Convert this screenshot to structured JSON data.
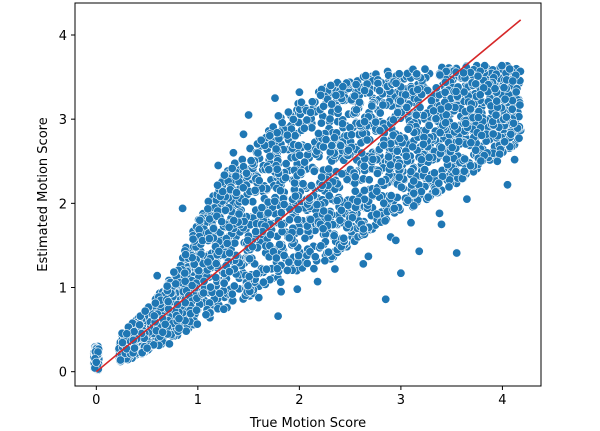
{
  "chart_data": {
    "type": "scatter",
    "title": "",
    "xlabel": "True Motion Score",
    "ylabel": "Estimated Motion Score",
    "xlim": [
      -0.21,
      4.38
    ],
    "ylim": [
      -0.17,
      4.38
    ],
    "xticks": [
      0,
      1,
      2,
      3,
      4
    ],
    "yticks": [
      0,
      1,
      2,
      3,
      4
    ],
    "grid": false,
    "legend": "none",
    "point_color": "#1f77b4",
    "point_edge_color": "#ffffff",
    "series": [
      {
        "type": "scatter",
        "values_note_only_points_visible_outside_dense_cloud_are_listed_individually": false,
        "band": [
          {
            "x": 0.0,
            "y_low": 0.02,
            "y_high": 0.3
          },
          {
            "x": 0.2,
            "y_low": 0.1,
            "y_high": 0.42
          },
          {
            "x": 0.4,
            "y_low": 0.18,
            "y_high": 0.62
          },
          {
            "x": 0.6,
            "y_low": 0.3,
            "y_high": 0.9
          },
          {
            "x": 0.8,
            "y_low": 0.42,
            "y_high": 1.25
          },
          {
            "x": 1.0,
            "y_low": 0.55,
            "y_high": 1.8
          },
          {
            "x": 1.2,
            "y_low": 0.7,
            "y_high": 2.25
          },
          {
            "x": 1.4,
            "y_low": 0.82,
            "y_high": 2.55
          },
          {
            "x": 1.6,
            "y_low": 0.95,
            "y_high": 2.8
          },
          {
            "x": 1.8,
            "y_low": 1.05,
            "y_high": 3.05
          },
          {
            "x": 2.0,
            "y_low": 1.15,
            "y_high": 3.2
          },
          {
            "x": 2.2,
            "y_low": 1.25,
            "y_high": 3.35
          },
          {
            "x": 2.4,
            "y_low": 1.4,
            "y_high": 3.45
          },
          {
            "x": 2.6,
            "y_low": 1.6,
            "y_high": 3.52
          },
          {
            "x": 2.8,
            "y_low": 1.75,
            "y_high": 3.56
          },
          {
            "x": 3.0,
            "y_low": 1.9,
            "y_high": 3.58
          },
          {
            "x": 3.2,
            "y_low": 2.0,
            "y_high": 3.6
          },
          {
            "x": 3.4,
            "y_low": 2.1,
            "y_high": 3.62
          },
          {
            "x": 3.6,
            "y_low": 2.25,
            "y_high": 3.63
          },
          {
            "x": 3.8,
            "y_low": 2.45,
            "y_high": 3.64
          },
          {
            "x": 4.0,
            "y_low": 2.6,
            "y_high": 3.65
          },
          {
            "x": 4.2,
            "y_low": 2.75,
            "y_high": 3.62
          }
        ],
        "points": [
          {
            "x": 0.85,
            "y": 1.94
          },
          {
            "x": 1.79,
            "y": 0.66
          },
          {
            "x": 2.85,
            "y": 0.86
          },
          {
            "x": 3.0,
            "y": 1.17
          },
          {
            "x": 3.55,
            "y": 1.41
          },
          {
            "x": 3.18,
            "y": 1.43
          },
          {
            "x": 2.68,
            "y": 1.37
          },
          {
            "x": 2.9,
            "y": 1.6
          },
          {
            "x": 3.4,
            "y": 1.75
          },
          {
            "x": 1.76,
            "y": 3.25
          },
          {
            "x": 2.02,
            "y": 3.2
          },
          {
            "x": 2.0,
            "y": 3.32
          },
          {
            "x": 1.45,
            "y": 2.82
          },
          {
            "x": 1.35,
            "y": 2.6
          },
          {
            "x": 1.2,
            "y": 2.45
          },
          {
            "x": 1.5,
            "y": 3.05
          },
          {
            "x": 1.82,
            "y": 0.95
          },
          {
            "x": 4.05,
            "y": 2.22
          },
          {
            "x": 4.12,
            "y": 2.52
          },
          {
            "x": 3.95,
            "y": 2.5
          },
          {
            "x": 3.65,
            "y": 2.05
          },
          {
            "x": 3.38,
            "y": 1.88
          },
          {
            "x": 3.1,
            "y": 1.77
          },
          {
            "x": 2.95,
            "y": 1.56
          },
          {
            "x": 2.63,
            "y": 1.28
          },
          {
            "x": 2.35,
            "y": 1.22
          },
          {
            "x": 2.18,
            "y": 1.07
          },
          {
            "x": 1.98,
            "y": 0.98
          },
          {
            "x": 1.6,
            "y": 0.88
          },
          {
            "x": 0.3,
            "y": 0.45
          },
          {
            "x": 0.6,
            "y": 1.14
          },
          {
            "x": 0.72,
            "y": 0.33
          },
          {
            "x": 0.5,
            "y": 0.28
          }
        ]
      },
      {
        "type": "line",
        "color": "#d62728",
        "x": [
          0.0,
          4.18
        ],
        "y": [
          0.0,
          4.18
        ]
      }
    ]
  }
}
